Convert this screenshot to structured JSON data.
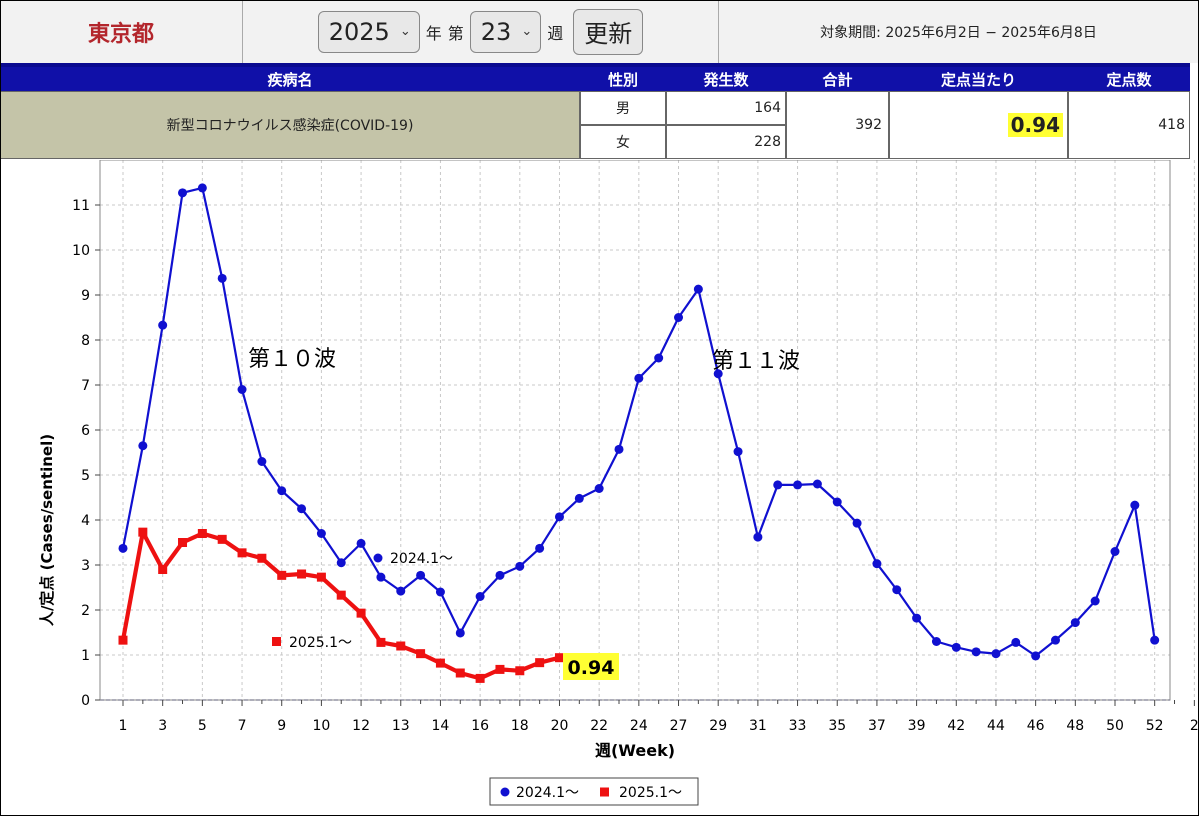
{
  "header": {
    "prefecture": "東京都",
    "year_value": "2025",
    "year_label": "年",
    "week_prefix": "第",
    "week_value": "23",
    "week_label": "週",
    "update_button": "更新",
    "period": "対象期間: 2025年6月2日 − 2025年6月8日"
  },
  "table": {
    "headers": [
      "疾病名",
      "性別",
      "発生数",
      "合計",
      "定点当たり",
      "定点数"
    ],
    "disease": "新型コロナウイルス感染症(COVID-19)",
    "male_label": "男",
    "male_count": "164",
    "female_label": "女",
    "female_count": "228",
    "total": "392",
    "per_sentinel": "0.94",
    "sentinels": "418"
  },
  "colors": {
    "header_blue": "#1010a8",
    "series_2024": "#1010d0",
    "series_2025": "#ee1111",
    "highlight": "#ffff33",
    "prefecture_red": "#b3262c"
  },
  "chart_data": {
    "type": "line",
    "ylabel": "人/定点 (Cases/sentinel)",
    "xlabel": "週(Week)",
    "ylim": [
      0,
      11.5
    ],
    "yticks": [
      0,
      1,
      2,
      3,
      4,
      5,
      6,
      7,
      8,
      9,
      10,
      11
    ],
    "xtick_labels": [
      "1",
      "3",
      "5",
      "7",
      "9",
      "10",
      "12",
      "13",
      "14",
      "16",
      "18",
      "20",
      "22",
      "24",
      "27",
      "29",
      "31",
      "33",
      "35",
      "37",
      "39",
      "42",
      "44",
      "46",
      "48",
      "50",
      "52",
      "2"
    ],
    "grid": true,
    "legend_position": "bottom",
    "annotations": [
      "第１０波",
      "第１１波",
      "0.94"
    ],
    "series": [
      {
        "name": "2024.1〜",
        "x": [
          1,
          2,
          3,
          4,
          5,
          6,
          7,
          8,
          9,
          10,
          11,
          12,
          13,
          14,
          15,
          16,
          17,
          18,
          19,
          20,
          21,
          22,
          23,
          24,
          25,
          26,
          27,
          28,
          29,
          30,
          31,
          32,
          33,
          34,
          35,
          36,
          37,
          38,
          39,
          40,
          41,
          42,
          43,
          44,
          45,
          46,
          47,
          48,
          49,
          50,
          51,
          52,
          53
        ],
        "values": [
          3.37,
          5.65,
          8.33,
          11.27,
          11.38,
          9.37,
          6.9,
          5.3,
          4.65,
          4.25,
          3.7,
          3.05,
          3.48,
          2.73,
          2.42,
          2.77,
          2.4,
          1.49,
          2.3,
          2.77,
          2.97,
          3.37,
          4.07,
          4.48,
          4.7,
          5.57,
          7.15,
          7.6,
          8.5,
          9.13,
          7.25,
          5.52,
          3.62,
          4.78,
          4.78,
          4.8,
          4.4,
          3.93,
          3.03,
          2.45,
          1.82,
          1.3,
          1.17,
          1.07,
          1.03,
          1.28,
          0.98,
          1.33,
          1.72,
          2.2,
          3.3,
          4.33,
          1.33
        ]
      },
      {
        "name": "2025.1〜",
        "x": [
          1,
          2,
          3,
          4,
          5,
          6,
          7,
          8,
          9,
          10,
          11,
          12,
          13,
          14,
          15,
          16,
          17,
          18,
          19,
          20,
          21,
          22,
          23
        ],
        "values": [
          1.33,
          3.73,
          2.9,
          3.5,
          3.7,
          3.57,
          3.27,
          3.15,
          2.77,
          2.8,
          2.73,
          2.33,
          1.93,
          1.28,
          1.2,
          1.03,
          0.82,
          0.6,
          0.48,
          0.68,
          0.65,
          0.83,
          0.94
        ]
      }
    ]
  }
}
